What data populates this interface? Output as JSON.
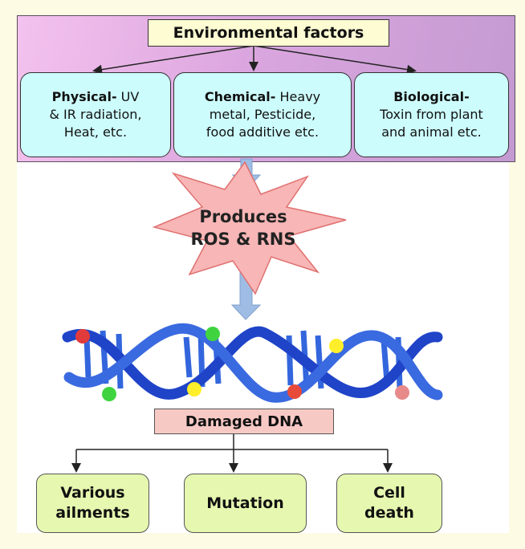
{
  "title": "Environmental factors",
  "factors": [
    {
      "head": "Physical-",
      "body_l1": " UV",
      "body_l2": "& IR radiation,",
      "body_l3": "Heat, etc."
    },
    {
      "head": "Chemical-",
      "body_l1": " Heavy",
      "body_l2": "metal, Pesticide,",
      "body_l3": "food additive etc."
    },
    {
      "head": "Biological-",
      "body_l1": "",
      "body_l2": "Toxin from plant",
      "body_l3": "and animal etc."
    }
  ],
  "star": {
    "line1": "Produces",
    "line2": "ROS & RNS"
  },
  "damaged": "Damaged DNA",
  "outcomes": [
    {
      "line1": "Various",
      "line2": "ailments"
    },
    {
      "line1": "Mutation",
      "line2": ""
    },
    {
      "line1": "Cell",
      "line2": "death"
    }
  ],
  "colors": {
    "panel": "#d8a6dc",
    "factor_fill": "#cdfcfc",
    "star_fill": "#f8b6b6",
    "dna_blue": "#2f5fd6",
    "outcome_fill": "#e6f8b0",
    "damaged_fill": "#f7c9c5",
    "arrow_blue": "#9fbde4"
  }
}
